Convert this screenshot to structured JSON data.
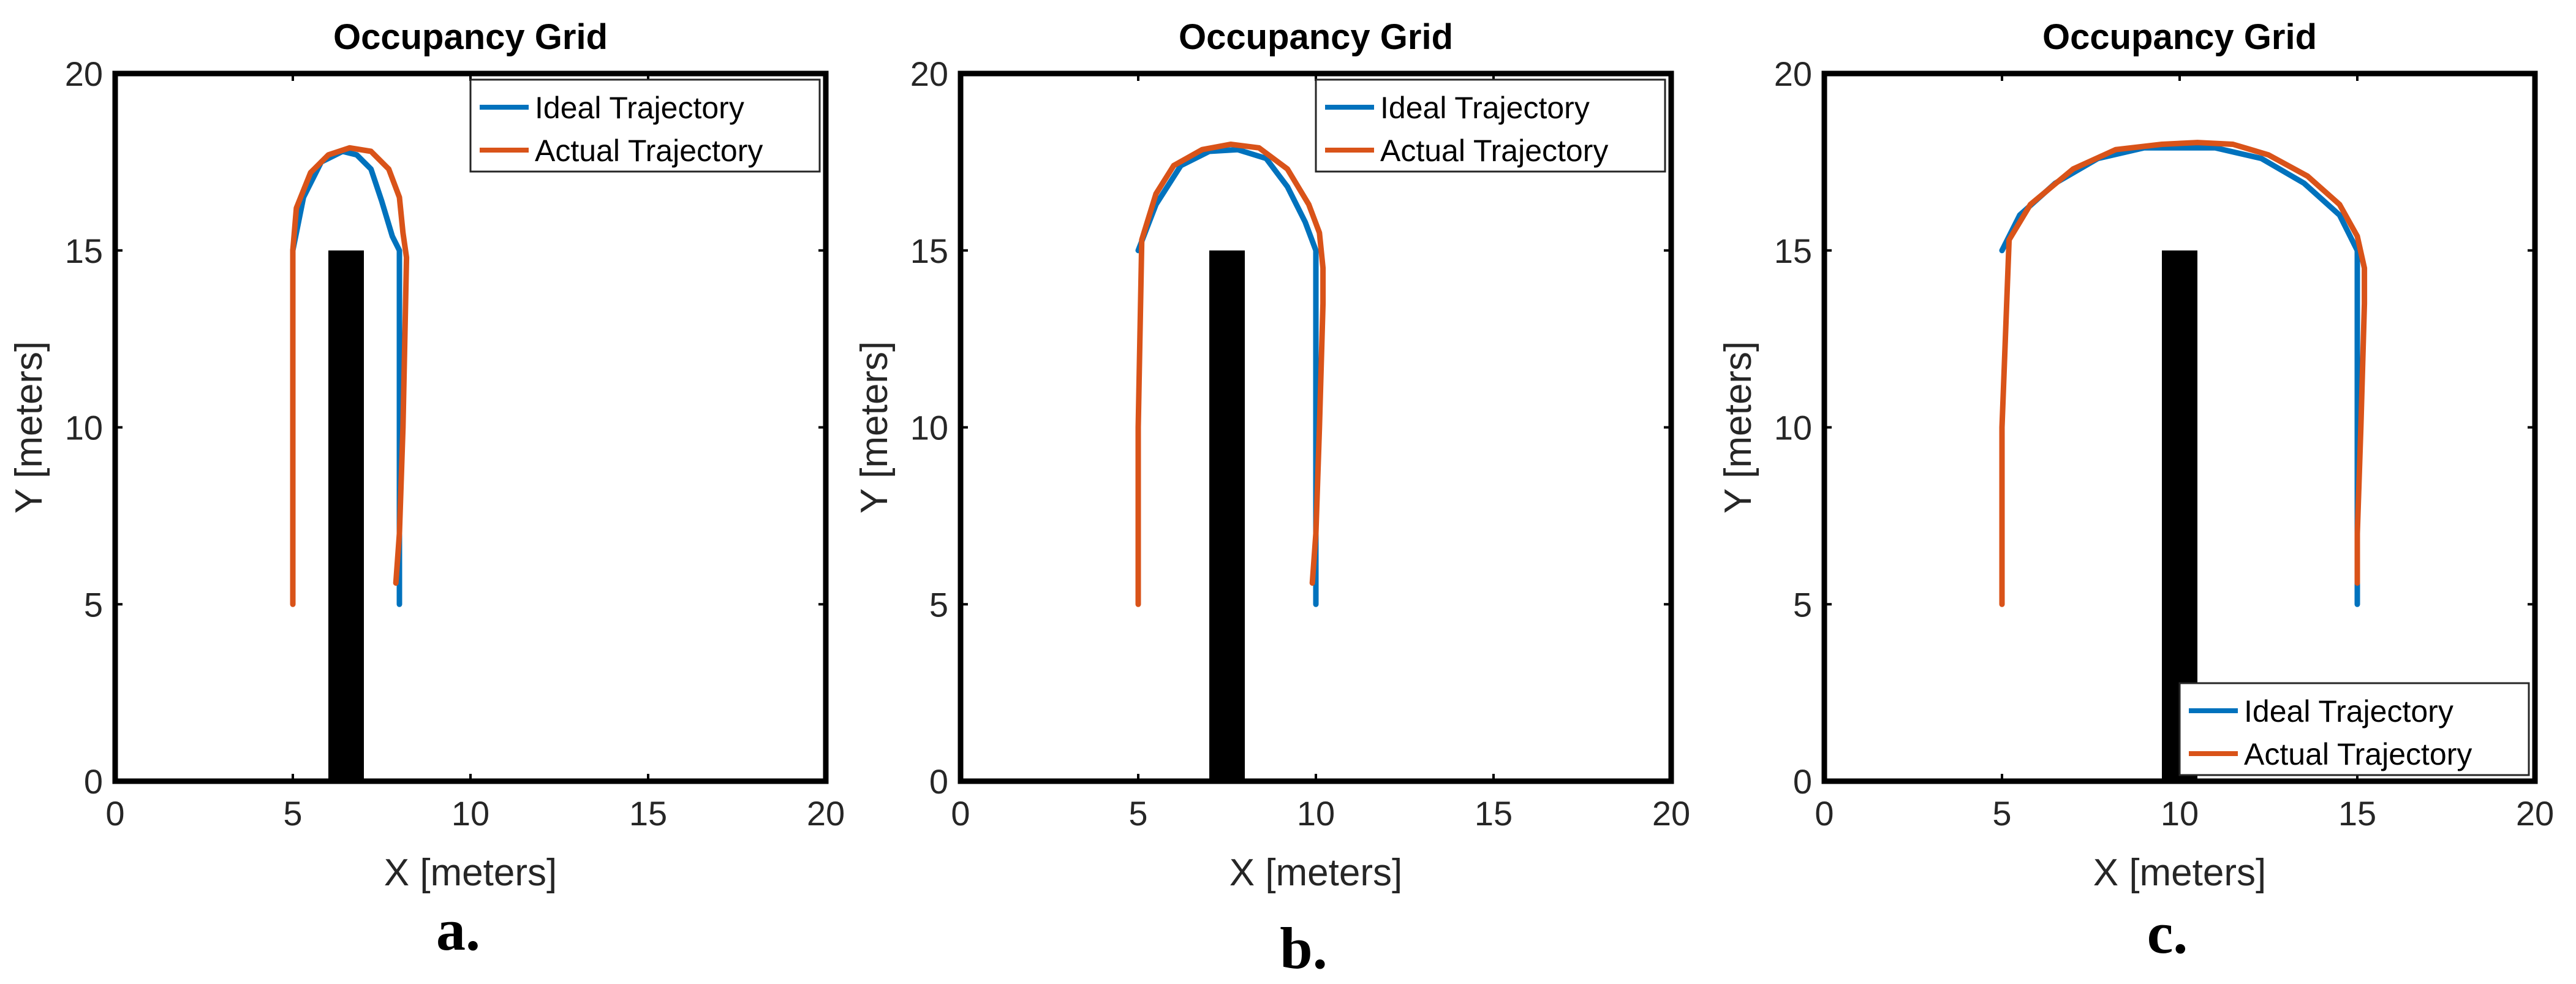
{
  "chart_data": [
    {
      "type": "line",
      "title": "Occupancy Grid",
      "xlabel": "X [meters]",
      "ylabel": "Y [meters]",
      "xlim": [
        0,
        20
      ],
      "ylim": [
        0,
        20
      ],
      "xticks": [
        "0",
        "5",
        "10",
        "15",
        "20"
      ],
      "yticks": [
        "0",
        "5",
        "10",
        "15",
        "20"
      ],
      "grid": false,
      "legend_position": "top-right",
      "caption": "a.",
      "obstacle": {
        "x": [
          6,
          7
        ],
        "y": [
          0,
          15
        ],
        "color": "#000000"
      },
      "series": [
        {
          "name": "Ideal Trajectory",
          "color": "#0072bd",
          "x": [
            5,
            5.3,
            5.8,
            6.4,
            6.8,
            7.2,
            7.5,
            7.8,
            8,
            8,
            8
          ],
          "y": [
            15,
            16.5,
            17.5,
            17.8,
            17.7,
            17.3,
            16.4,
            15.4,
            15,
            10,
            5
          ]
        },
        {
          "name": "Actual Trajectory",
          "color": "#d95319",
          "x": [
            5,
            5,
            5,
            5.1,
            5.5,
            6,
            6.6,
            7.2,
            7.7,
            8,
            8.1,
            8.2,
            8.1,
            8,
            7.9
          ],
          "y": [
            5,
            10,
            15,
            16.2,
            17.2,
            17.7,
            17.9,
            17.8,
            17.3,
            16.5,
            15.5,
            14.8,
            10,
            7,
            5.6
          ]
        }
      ]
    },
    {
      "type": "line",
      "title": "Occupancy Grid",
      "xlabel": "X [meters]",
      "ylabel": "Y [meters]",
      "xlim": [
        0,
        20
      ],
      "ylim": [
        0,
        20
      ],
      "xticks": [
        "0",
        "5",
        "10",
        "15",
        "20"
      ],
      "yticks": [
        "0",
        "5",
        "10",
        "15",
        "20"
      ],
      "grid": false,
      "legend_position": "top-right",
      "caption": "b.",
      "obstacle": {
        "x": [
          7,
          8
        ],
        "y": [
          0,
          15
        ],
        "color": "#000000"
      },
      "series": [
        {
          "name": "Ideal Trajectory",
          "color": "#0072bd",
          "x": [
            5,
            5.5,
            6.2,
            7,
            7.8,
            8.6,
            9.2,
            9.7,
            10,
            10,
            10
          ],
          "y": [
            15,
            16.3,
            17.4,
            17.8,
            17.85,
            17.6,
            16.8,
            15.8,
            15,
            10,
            5
          ]
        },
        {
          "name": "Actual Trajectory",
          "color": "#d95319",
          "x": [
            5,
            5,
            5.1,
            5.5,
            6,
            6.8,
            7.6,
            8.4,
            9.2,
            9.8,
            10.1,
            10.2,
            10.2,
            10.1,
            10,
            9.9
          ],
          "y": [
            5,
            10,
            15.3,
            16.6,
            17.4,
            17.85,
            18.0,
            17.9,
            17.3,
            16.3,
            15.5,
            14.5,
            13.5,
            10,
            7,
            5.6
          ]
        }
      ]
    },
    {
      "type": "line",
      "title": "Occupancy Grid",
      "xlabel": "X [meters]",
      "ylabel": "Y [meters]",
      "xlim": [
        0,
        20
      ],
      "ylim": [
        0,
        20
      ],
      "xticks": [
        "0",
        "5",
        "10",
        "15",
        "20"
      ],
      "yticks": [
        "0",
        "5",
        "10",
        "15",
        "20"
      ],
      "grid": false,
      "legend_position": "bottom-right",
      "caption": "c.",
      "obstacle": {
        "x": [
          9.5,
          10.5
        ],
        "y": [
          0,
          15
        ],
        "color": "#000000"
      },
      "series": [
        {
          "name": "Ideal Trajectory",
          "color": "#0072bd",
          "x": [
            5,
            5.5,
            6.5,
            7.7,
            9,
            10,
            11,
            12.3,
            13.5,
            14.5,
            15,
            15,
            15
          ],
          "y": [
            15,
            16,
            16.9,
            17.6,
            17.9,
            17.9,
            17.9,
            17.6,
            16.9,
            16,
            15,
            10,
            5
          ]
        },
        {
          "name": "Actual Trajectory",
          "color": "#d95319",
          "x": [
            5,
            5,
            5.2,
            5.8,
            7,
            8.2,
            9.5,
            10.5,
            11.5,
            12.5,
            13.6,
            14.5,
            15,
            15.2,
            15.2,
            15.1,
            15,
            15
          ],
          "y": [
            5,
            10,
            15.3,
            16.3,
            17.3,
            17.85,
            18.0,
            18.05,
            18.0,
            17.7,
            17.1,
            16.3,
            15.4,
            14.5,
            13.5,
            10,
            7,
            5.6
          ]
        }
      ]
    }
  ]
}
